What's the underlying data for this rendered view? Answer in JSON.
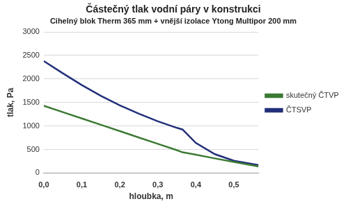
{
  "chart_data": {
    "type": "line",
    "title": "Částečný tlak vodní páry v konstrukci",
    "subtitle": "Cihelný blok Therm 365 mm + vnější izolace Ytong Multipor 200 mm",
    "x_label": "hloubka, m",
    "y_label": "tlak, Pa",
    "x": [
      0,
      0.05,
      0.1,
      0.15,
      0.2,
      0.25,
      0.3,
      0.35,
      0.365,
      0.4,
      0.45,
      0.5,
      0.565
    ],
    "series": [
      {
        "name": "skutečný ČTVP",
        "color": "#3b7a34",
        "marker": "none",
        "values": [
          1430,
          1295,
          1160,
          1025,
          890,
          755,
          620,
          485,
          440,
          390,
          310,
          235,
          140
        ]
      },
      {
        "name": "ČTSVP",
        "color": "#22307a",
        "marker": "none",
        "values": [
          2380,
          2120,
          1870,
          1640,
          1440,
          1260,
          1100,
          960,
          925,
          640,
          400,
          260,
          170
        ]
      }
    ],
    "xlim": [
      0,
      0.565
    ],
    "xticks": [
      {
        "value": 0,
        "label": "0,0"
      },
      {
        "value": 0.1,
        "label": "0,1"
      },
      {
        "value": 0.2,
        "label": "0,2"
      },
      {
        "value": 0.3,
        "label": "0,3"
      },
      {
        "value": 0.4,
        "label": "0,4"
      },
      {
        "value": 0.5,
        "label": "0,5"
      }
    ],
    "ylim": [
      0,
      3000
    ],
    "yticks": [
      0,
      500,
      1000,
      1500,
      2000,
      2500,
      3000
    ],
    "grid": true,
    "legend": "right"
  }
}
